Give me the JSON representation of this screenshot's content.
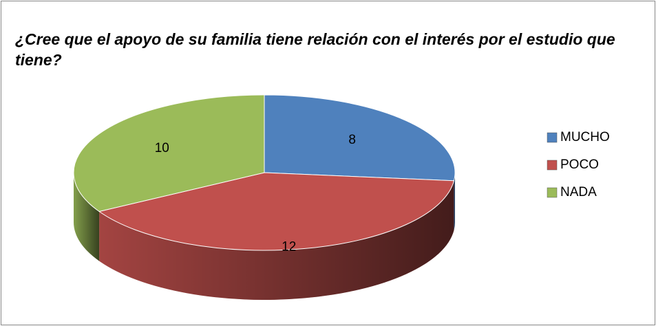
{
  "chart_data": {
    "type": "pie",
    "title": "¿Cree que el apoyo de su familia tiene relación con el interés por el estudio que tiene?",
    "categories": [
      "MUCHO",
      "POCO",
      "NADA"
    ],
    "values": [
      8,
      12,
      10
    ],
    "colors": [
      "#4f81bd",
      "#c0504d",
      "#9bbb59"
    ],
    "legend": "right"
  }
}
